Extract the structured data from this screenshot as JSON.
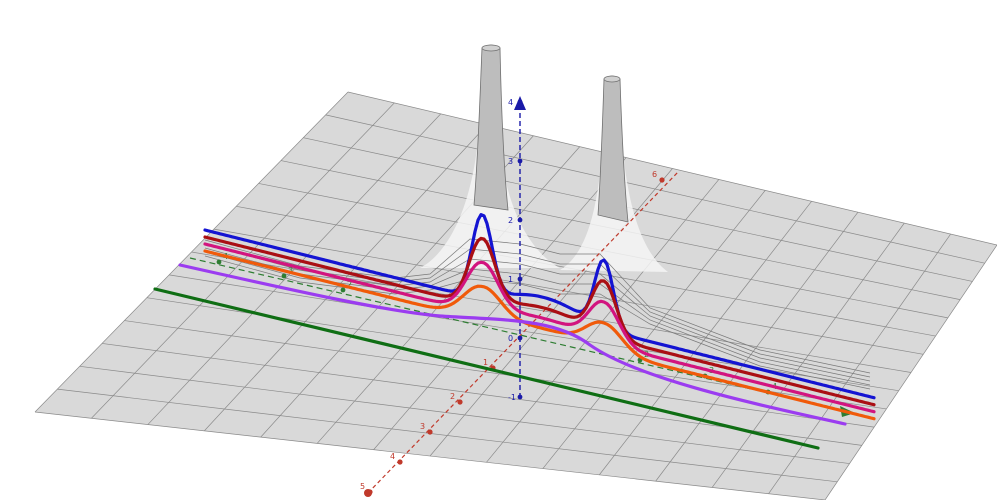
{
  "view": {
    "surface_color": "#d9d9d9",
    "grid_color": "#8a8a8a",
    "peak_fill": "#bdbdbd"
  },
  "axes": {
    "z": {
      "color": "#1a1aa8",
      "labels": [
        {
          "t": "4",
          "v": 4
        },
        {
          "t": "3",
          "v": 3
        },
        {
          "t": "2",
          "v": 2
        },
        {
          "t": "1",
          "v": 1
        },
        {
          "t": "0",
          "v": 0
        },
        {
          "t": "-1",
          "v": -1
        }
      ]
    },
    "y": {
      "color": "#c0392b",
      "labels": [
        {
          "t": "6",
          "v": 6
        },
        {
          "t": "1",
          "v": 1
        },
        {
          "t": "2",
          "v": 2
        },
        {
          "t": "3",
          "v": 3
        },
        {
          "t": "4",
          "v": 4
        },
        {
          "t": "5",
          "v": 5
        }
      ]
    },
    "x": {
      "color": "#2e7d32",
      "labels": [
        {
          "t": "4",
          "v": -4
        },
        {
          "t": "3",
          "v": -3
        },
        {
          "t": "2",
          "v": -2
        },
        {
          "t": "2",
          "v": 2
        },
        {
          "t": "3",
          "v": 3
        },
        {
          "t": "4",
          "v": 4
        }
      ]
    }
  },
  "curves": [
    {
      "name": "blue",
      "color": "#1414d2",
      "level": 6
    },
    {
      "name": "darkred",
      "color": "#aa0f14",
      "level": 5
    },
    {
      "name": "magenta",
      "color": "#d2147f",
      "level": 4
    },
    {
      "name": "orange",
      "color": "#f05a0a",
      "level": 3
    },
    {
      "name": "purple",
      "color": "#9b3cf0",
      "level": 2
    },
    {
      "name": "green",
      "color": "#0f6e14",
      "level": 0
    }
  ]
}
